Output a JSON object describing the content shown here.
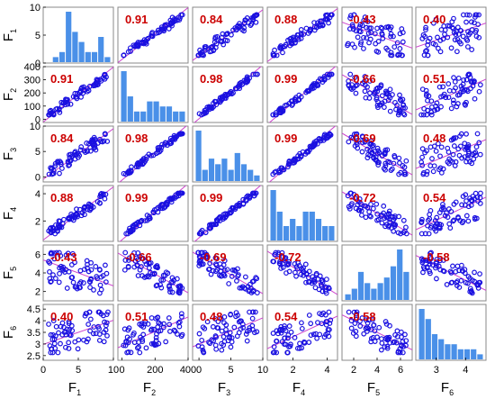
{
  "chart_data": {
    "type": "scatter",
    "variables": [
      {
        "base": "F",
        "sub": "1",
        "range": [
          0,
          10
        ],
        "ticks": [
          "0",
          "5",
          "10"
        ],
        "y_ticks": [
          "0",
          "5",
          "10"
        ]
      },
      {
        "base": "F",
        "sub": "2",
        "range": [
          -25,
          400
        ],
        "ticks": [
          "0",
          "200",
          "400"
        ],
        "y_ticks": [
          "0",
          "100",
          "200",
          "300",
          "400"
        ]
      },
      {
        "base": "F",
        "sub": "3",
        "range": [
          -1,
          10
        ],
        "ticks": [
          "0",
          "5",
          "10"
        ],
        "y_ticks": [
          "0",
          "5",
          "10"
        ]
      },
      {
        "base": "F",
        "sub": "4",
        "range": [
          0.5,
          4.6
        ],
        "ticks": [
          "2",
          "4"
        ],
        "y_ticks": [
          "2",
          "4"
        ]
      },
      {
        "base": "F",
        "sub": "5",
        "range": [
          1,
          7
        ],
        "ticks": [
          "2",
          "4",
          "6"
        ],
        "y_ticks": [
          "2",
          "4",
          "6"
        ]
      },
      {
        "base": "F",
        "sub": "6",
        "range": [
          2.3,
          4.7
        ],
        "ticks": [
          "3",
          "4"
        ],
        "y_ticks": [
          "2.5",
          "3",
          "3.5",
          "4",
          "4.5"
        ]
      }
    ],
    "correlations": [
      [
        "",
        "0.91",
        "0.84",
        "0.88",
        "-0.43",
        "0.40"
      ],
      [
        "0.91",
        "",
        "0.98",
        "0.99",
        "-0.66",
        "0.51"
      ],
      [
        "0.84",
        "0.98",
        "",
        "0.99",
        "-0.69",
        "0.48"
      ],
      [
        "0.88",
        "0.99",
        "0.99",
        "",
        "-0.72",
        "0.54"
      ],
      [
        "-0.43",
        "-0.66",
        "-0.69",
        "-0.72",
        "",
        "-0.58"
      ],
      [
        "0.40",
        "0.51",
        "0.48",
        "0.54",
        "-0.58",
        ""
      ]
    ],
    "histograms": [
      [
        0,
        1,
        2,
        10,
        6,
        4,
        2,
        2,
        5,
        1
      ],
      [
        10,
        5,
        2,
        2,
        4,
        4,
        3,
        3,
        2,
        2
      ],
      [
        9,
        2,
        4,
        3,
        4,
        2,
        5,
        3,
        2,
        1
      ],
      [
        7,
        4,
        2,
        3,
        2,
        4,
        4,
        3,
        2,
        2
      ],
      [
        1,
        2,
        5,
        3,
        2,
        3,
        4,
        6,
        9,
        5
      ],
      [
        10,
        8,
        5,
        4,
        3,
        3,
        2,
        2,
        2,
        1
      ]
    ],
    "colors": {
      "points": "#1a10e0",
      "fit_line": "#cc44cc",
      "correlation_text": "#cc0000",
      "histogram_bar": "#4a90e8",
      "panel_border": "#888888"
    }
  }
}
